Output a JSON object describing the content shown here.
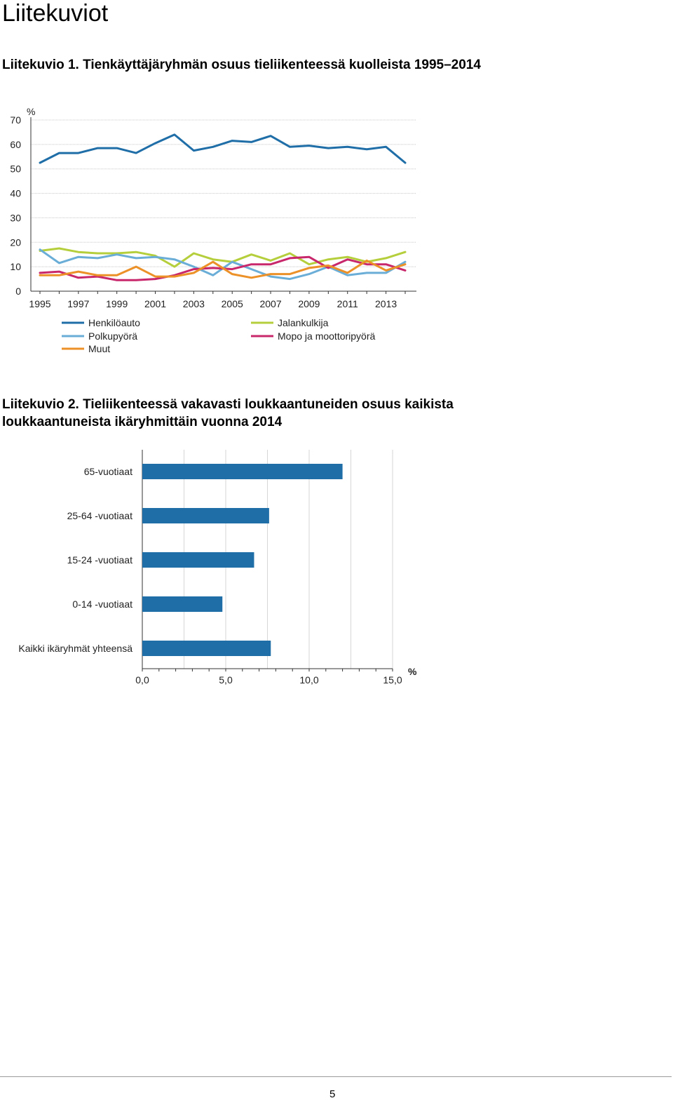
{
  "page": {
    "title": "Liitekuviot",
    "page_number": "5"
  },
  "chart_data": [
    {
      "type": "line",
      "title": "Liitekuvio 1. Tienkäyttäjäryhmän osuus tieliikenteessä kuolleista 1995–2014",
      "ylabel": "%",
      "ylim": [
        0,
        70
      ],
      "yticks": [
        "0",
        "10",
        "20",
        "30",
        "40",
        "50",
        "60",
        "70"
      ],
      "xlim": [
        1995,
        2014
      ],
      "xticks": [
        "1995",
        "1997",
        "1999",
        "2001",
        "2003",
        "2005",
        "2007",
        "2009",
        "2011",
        "2013"
      ],
      "x": [
        1995,
        1996,
        1997,
        1998,
        1999,
        2000,
        2001,
        2002,
        2003,
        2004,
        2005,
        2006,
        2007,
        2008,
        2009,
        2010,
        2011,
        2012,
        2013,
        2014
      ],
      "grid": true,
      "legend_position": "bottom",
      "series": [
        {
          "name": "Henkilöauto",
          "color": "#1f6ea8",
          "values": [
            52.5,
            56.5,
            56.5,
            58.5,
            58.5,
            56.5,
            60.5,
            64,
            57.5,
            59,
            61.5,
            61,
            63.5,
            59,
            59.5,
            58.5,
            59,
            58,
            59,
            52.5
          ]
        },
        {
          "name": "Jalankulkija",
          "color": "#b5cf3c",
          "values": [
            16.5,
            17.5,
            16,
            15.5,
            15.5,
            16,
            14.5,
            10,
            15.5,
            13,
            12,
            15,
            12.5,
            15.5,
            11,
            13,
            14,
            12,
            13.5,
            16
          ]
        },
        {
          "name": "Polkupyörä",
          "color": "#6aaed8",
          "values": [
            17,
            11.5,
            14,
            13.5,
            15,
            13.5,
            14,
            13,
            10,
            6.5,
            12,
            9,
            6,
            5,
            7,
            10,
            6.5,
            7.5,
            7.5,
            12
          ]
        },
        {
          "name": "Mopo ja moottoripyörä",
          "color": "#c8286b",
          "values": [
            7.5,
            8,
            5.5,
            6,
            4.5,
            4.5,
            5,
            6.5,
            9,
            9.5,
            9,
            11,
            11,
            13.5,
            14,
            9.5,
            13,
            11,
            11,
            8.5
          ]
        },
        {
          "name": "Muut",
          "color": "#ec9128",
          "values": [
            6.5,
            6.5,
            8,
            6.5,
            6.5,
            10,
            6,
            6,
            7.5,
            12,
            7,
            5.5,
            7,
            7,
            9.5,
            10.5,
            7.5,
            12.5,
            8.5,
            11
          ]
        }
      ]
    },
    {
      "type": "bar",
      "orientation": "horizontal",
      "title": "Liitekuvio 2. Tieliikenteessä vakavasti loukkaantuneiden osuus kaikista loukkaantuneista ikäryhmittäin vuonna 2014",
      "xlabel": "%",
      "xlim": [
        0,
        15
      ],
      "xticks": [
        "0,0",
        "5,0",
        "10,0",
        "15,0"
      ],
      "categories": [
        "65-vuotiaat",
        "25-64 -vuotiaat",
        "15-24 -vuotiaat",
        "0-14 -vuotiaat",
        "Kaikki ikäryhmät yhteensä"
      ],
      "values": [
        12.0,
        7.6,
        6.7,
        4.8,
        7.7
      ],
      "color": "#1f6ea8",
      "grid": true
    }
  ]
}
